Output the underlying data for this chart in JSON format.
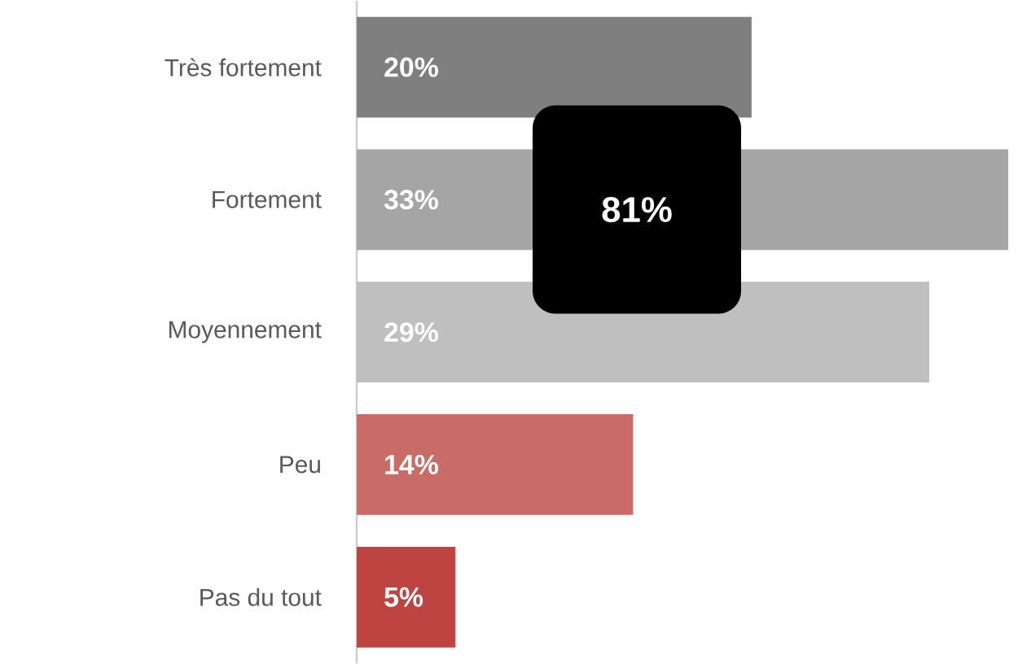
{
  "chart_data": {
    "type": "bar",
    "orientation": "horizontal",
    "categories": [
      "Très fortement",
      "Fortement",
      "Moyennement",
      "Peu",
      "Pas du tout"
    ],
    "values": [
      20,
      33,
      29,
      14,
      5
    ],
    "value_labels": [
      "20%",
      "33%",
      "29%",
      "14%",
      "5%"
    ],
    "colors": [
      "#7f7f7f",
      "#a5a5a5",
      "#bfbfbf",
      "#c96b67",
      "#be4442"
    ],
    "annotations": [
      "81%"
    ]
  }
}
